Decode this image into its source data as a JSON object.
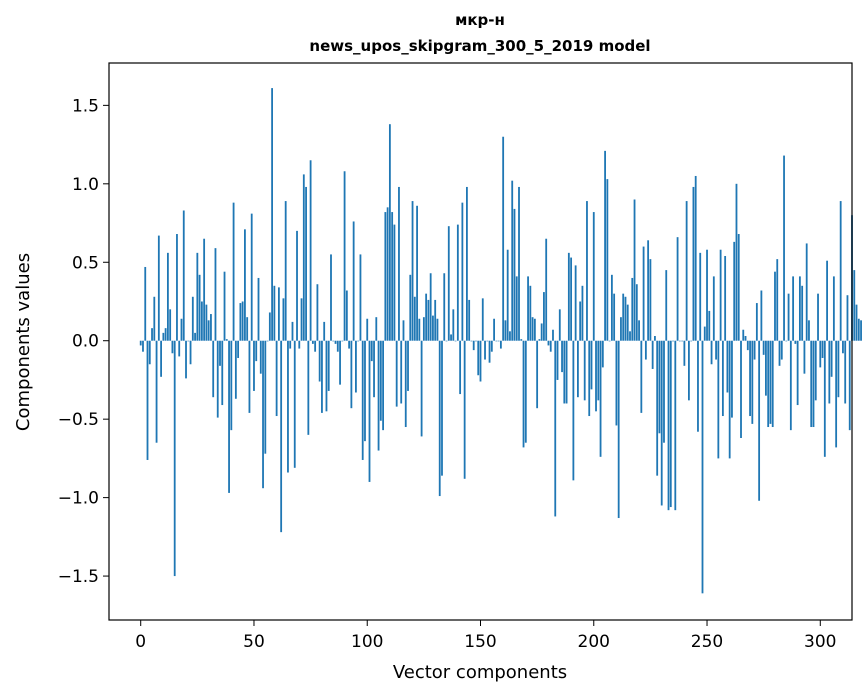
{
  "chart_data": {
    "type": "bar",
    "title_line1": "мкр-н",
    "title_line2": "news_upos_skipgram_300_5_2019 model",
    "xlabel": "Vector components",
    "ylabel": "Components values",
    "xlim": [
      -14,
      314
    ],
    "ylim": [
      -1.78,
      1.77
    ],
    "xticks": [
      0,
      50,
      100,
      150,
      200,
      250,
      300
    ],
    "xtick_labels": [
      "0",
      "50",
      "100",
      "150",
      "200",
      "250",
      "300"
    ],
    "yticks": [
      -1.5,
      -1.0,
      -0.5,
      0.0,
      0.5,
      1.0,
      1.5
    ],
    "ytick_labels": [
      "−1.5",
      "−1.0",
      "−0.5",
      "0.0",
      "0.5",
      "1.0",
      "1.5"
    ],
    "bar_color": "#1f77b4",
    "grid": false,
    "values": [
      -0.03,
      -0.07,
      0.47,
      -0.76,
      -0.15,
      0.08,
      0.28,
      -0.65,
      0.67,
      -0.23,
      0.05,
      0.08,
      0.56,
      0.2,
      -0.08,
      -1.5,
      0.68,
      -0.1,
      0.14,
      0.83,
      -0.24,
      0.0,
      -0.15,
      0.28,
      0.05,
      0.56,
      0.42,
      0.25,
      0.65,
      0.23,
      0.13,
      0.17,
      -0.36,
      0.59,
      -0.49,
      -0.16,
      -0.41,
      0.44,
      0.01,
      -0.97,
      -0.57,
      0.88,
      -0.37,
      -0.11,
      0.24,
      0.25,
      0.71,
      0.15,
      -0.46,
      0.81,
      -0.32,
      -0.13,
      0.4,
      -0.21,
      -0.94,
      -0.72,
      0.0,
      0.18,
      1.61,
      0.35,
      -0.48,
      0.34,
      -1.22,
      0.27,
      0.89,
      -0.84,
      -0.05,
      0.12,
      -0.81,
      0.7,
      -0.05,
      0.27,
      1.06,
      0.98,
      -0.6,
      1.15,
      -0.02,
      -0.07,
      0.36,
      -0.26,
      -0.46,
      0.12,
      -0.45,
      -0.32,
      0.55,
      0.0,
      -0.02,
      -0.07,
      -0.28,
      0.0,
      1.08,
      0.32,
      -0.05,
      -0.43,
      0.76,
      -0.33,
      0.0,
      0.55,
      -0.76,
      -0.64,
      0.14,
      -0.9,
      -0.13,
      -0.36,
      0.15,
      -0.7,
      -0.51,
      -0.57,
      0.82,
      0.85,
      1.38,
      0.82,
      0.74,
      -0.42,
      0.98,
      -0.4,
      0.13,
      -0.55,
      -0.32,
      0.42,
      0.89,
      0.28,
      0.86,
      0.14,
      -0.61,
      0.15,
      0.3,
      0.26,
      0.43,
      0.16,
      0.26,
      0.14,
      -0.99,
      -0.86,
      0.43,
      0.0,
      0.73,
      0.04,
      0.2,
      0.0,
      0.74,
      -0.34,
      0.88,
      -0.88,
      0.98,
      0.26,
      0.0,
      -0.06,
      0.0,
      -0.22,
      -0.26,
      0.27,
      -0.12,
      0.0,
      -0.14,
      -0.07,
      0.14,
      0.0,
      0.0,
      -0.05,
      1.3,
      0.13,
      0.58,
      0.06,
      1.02,
      0.84,
      0.41,
      0.98,
      0.01,
      -0.68,
      -0.65,
      0.41,
      0.35,
      0.15,
      0.14,
      -0.43,
      0.01,
      0.11,
      0.31,
      0.65,
      -0.03,
      -0.07,
      0.07,
      -1.12,
      -0.25,
      0.2,
      -0.2,
      -0.4,
      -0.4,
      0.56,
      0.53,
      -0.89,
      0.48,
      -0.36,
      0.25,
      0.35,
      -0.38,
      0.89,
      -0.48,
      -0.31,
      0.82,
      -0.45,
      -0.38,
      -0.74,
      -0.17,
      1.21,
      1.03,
      0.0,
      0.42,
      0.3,
      -0.54,
      -1.13,
      0.15,
      0.3,
      0.28,
      0.23,
      0.06,
      0.4,
      0.9,
      0.36,
      0.13,
      -0.46,
      0.6,
      -0.12,
      0.64,
      0.52,
      -0.18,
      0.03,
      -0.86,
      -0.59,
      -1.05,
      -0.65,
      0.45,
      -1.08,
      -1.06,
      0.0,
      -1.08,
      0.66,
      0.0,
      0.0,
      -0.16,
      0.89,
      -0.38,
      0.0,
      0.98,
      1.05,
      -0.58,
      0.56,
      -1.61,
      0.09,
      0.58,
      0.19,
      -0.15,
      0.41,
      -0.12,
      -0.75,
      0.58,
      -0.48,
      0.54,
      -0.33,
      -0.75,
      -0.49,
      0.63,
      1.0,
      0.68,
      -0.62,
      0.07,
      0.03,
      -0.06,
      -0.48,
      -0.53,
      -0.12,
      0.24,
      -1.02,
      0.32,
      -0.09,
      -0.35,
      -0.55,
      -0.53,
      -0.55,
      0.44,
      0.52,
      -0.16,
      -0.12,
      1.18,
      0.0,
      0.3,
      -0.57,
      0.41,
      -0.02,
      -0.41,
      0.41,
      0.35,
      -0.21,
      0.62,
      0.13,
      -0.55,
      -0.55,
      -0.38,
      0.3,
      -0.17,
      -0.11,
      -0.74,
      0.51,
      -0.4,
      -0.23,
      0.41,
      -0.68,
      -0.36,
      0.89,
      -0.08,
      -0.4,
      0.29,
      -0.57,
      0.8,
      0.45,
      0.23,
      0.14,
      0.13
    ]
  }
}
